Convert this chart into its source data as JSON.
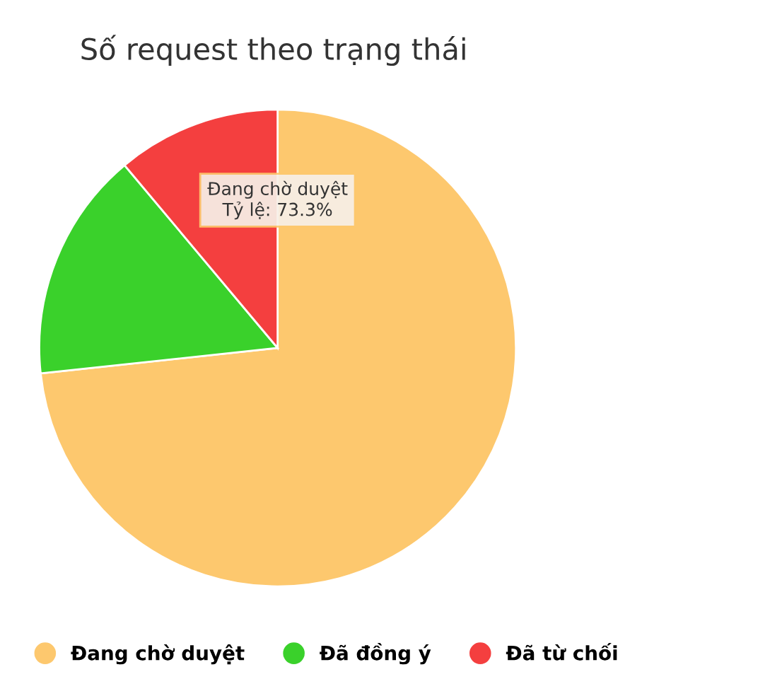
{
  "chart_data": {
    "type": "pie",
    "title": "Số request theo trạng thái",
    "categories": [
      "Đang chờ duyệt",
      "Đã đồng ý",
      "Đã từ chối"
    ],
    "values": [
      73.3,
      15.6,
      11.1
    ],
    "colors": [
      "#fdc86e",
      "#3ad12b",
      "#f43f3f"
    ],
    "legend": "bottom",
    "annotations": [
      "Đang chờ duyệt\nTỷ lệ: 73.3%"
    ]
  }
}
